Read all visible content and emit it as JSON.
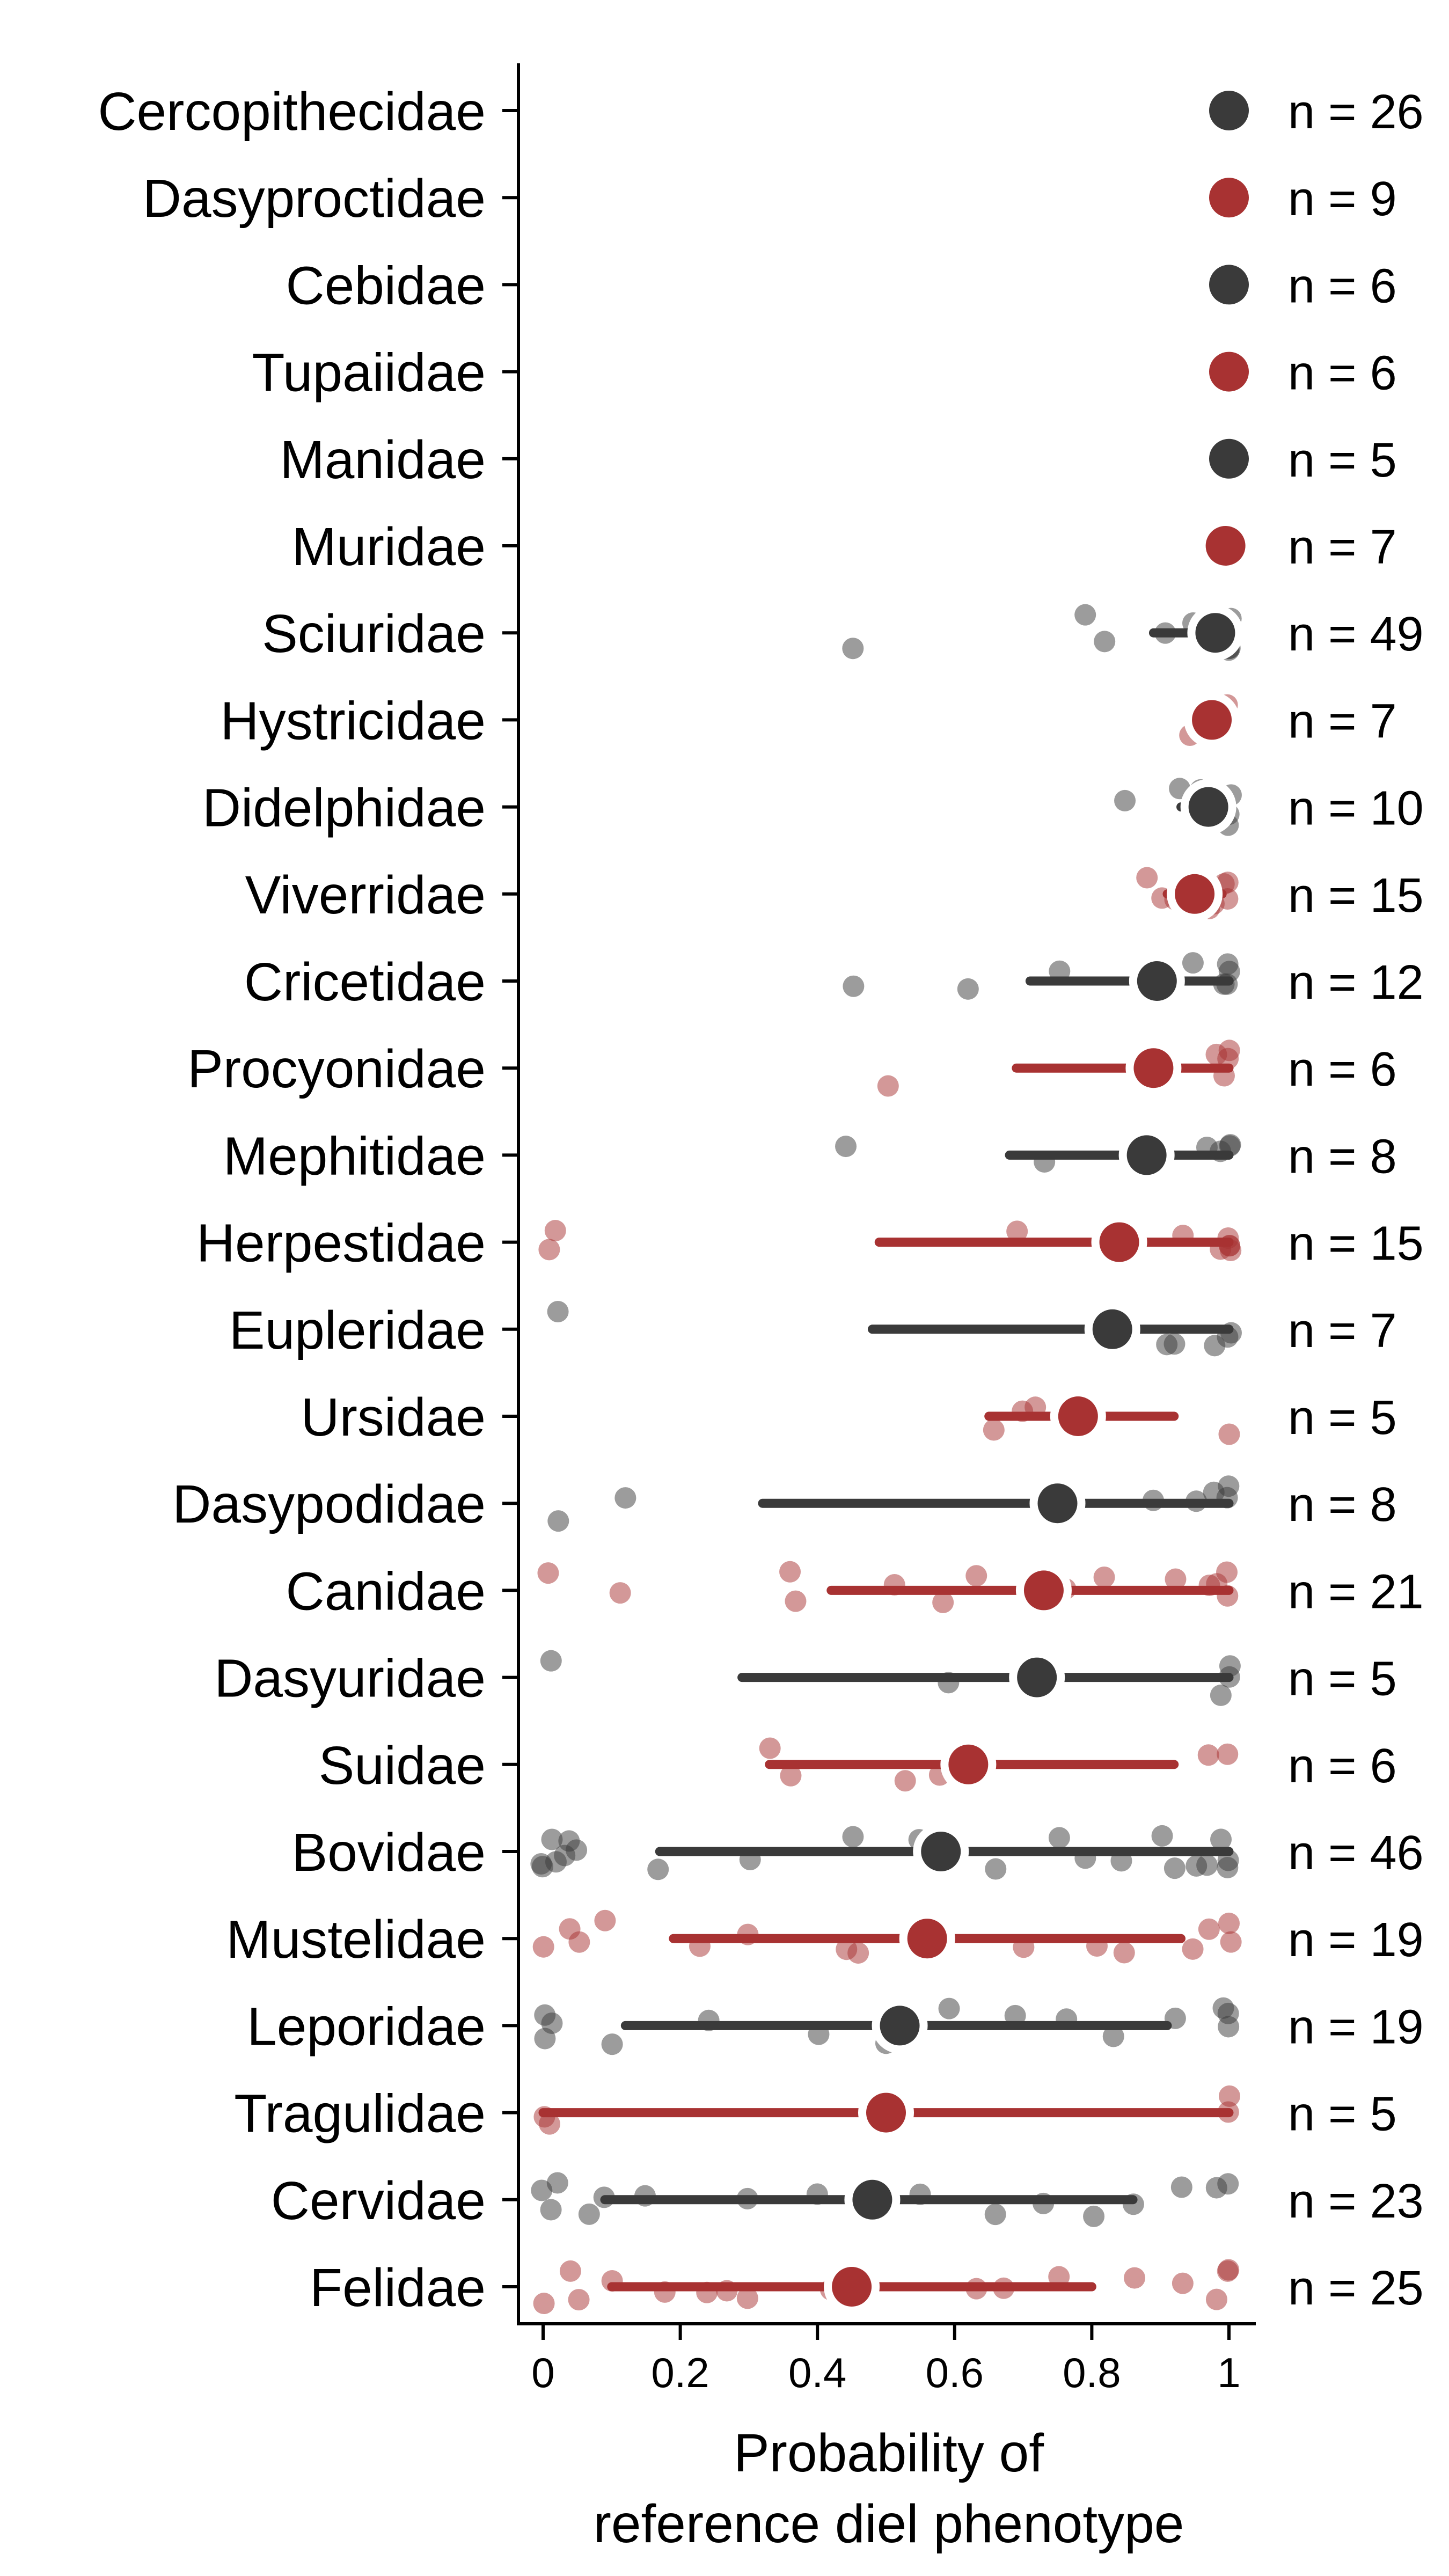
{
  "chart_data": {
    "type": "scatter",
    "xlabel": [
      "Probability of",
      "reference diel phenotype"
    ],
    "xlim": [
      -0.04,
      1.045
    ],
    "xticks": [
      {
        "value": 0,
        "label": "0"
      },
      {
        "value": 0.2,
        "label": "0.2"
      },
      {
        "value": 0.4,
        "label": "0.4"
      },
      {
        "value": 0.6,
        "label": "0.6"
      },
      {
        "value": 0.8,
        "label": "0.8"
      },
      {
        "value": 1,
        "label": "1"
      }
    ],
    "grid": false,
    "colors": {
      "dark": "#3a3a3a",
      "red": "#a83232"
    },
    "families": [
      {
        "name": "Cercopithecidae",
        "n_label": "n = 26",
        "color": "dark",
        "mean": 1.0,
        "lo": null,
        "hi": null,
        "points": [
          1.0,
          1.0,
          1.0,
          1.0,
          1.0,
          1.0,
          0.99,
          1.0,
          1.0,
          1.0
        ]
      },
      {
        "name": "Dasyproctidae",
        "n_label": "n = 9",
        "color": "red",
        "mean": 1.0,
        "lo": null,
        "hi": null,
        "points": [
          1.0,
          1.0,
          1.0,
          0.99,
          1.0,
          1.0
        ]
      },
      {
        "name": "Cebidae",
        "n_label": "n = 6",
        "color": "dark",
        "mean": 1.0,
        "lo": null,
        "hi": null,
        "points": [
          1.0,
          1.0,
          1.0,
          1.0
        ]
      },
      {
        "name": "Tupaiidae",
        "n_label": "n = 6",
        "color": "red",
        "mean": 1.0,
        "lo": null,
        "hi": null,
        "points": [
          1.0,
          1.0,
          0.99,
          1.0
        ]
      },
      {
        "name": "Manidae",
        "n_label": "n = 5",
        "color": "dark",
        "mean": 1.0,
        "lo": null,
        "hi": null,
        "points": [
          1.0,
          1.0,
          1.0,
          1.0
        ]
      },
      {
        "name": "Muridae",
        "n_label": "n = 7",
        "color": "red",
        "mean": 0.995,
        "lo": null,
        "hi": null,
        "points": [
          1.0,
          1.0,
          0.99,
          1.0,
          1.0,
          1.0
        ]
      },
      {
        "name": "Sciuridae",
        "n_label": "n = 49",
        "color": "dark",
        "mean": 0.98,
        "lo": 0.89,
        "hi": 1.0,
        "points": [
          0.45,
          0.79,
          0.82,
          0.91,
          0.95,
          0.97,
          0.99,
          1.0,
          1.0,
          1.0,
          1.0,
          0.98,
          0.99,
          1.0
        ]
      },
      {
        "name": "Hystricidae",
        "n_label": "n = 7",
        "color": "red",
        "mean": 0.975,
        "lo": null,
        "hi": null,
        "points": [
          0.94,
          0.96,
          0.99,
          1.0,
          1.0,
          0.98
        ]
      },
      {
        "name": "Didelphidae",
        "n_label": "n = 10",
        "color": "dark",
        "mean": 0.97,
        "lo": 0.93,
        "hi": 1.0,
        "points": [
          0.85,
          0.93,
          0.96,
          0.99,
          1.0,
          1.0,
          1.0,
          0.98
        ]
      },
      {
        "name": "Viverridae",
        "n_label": "n = 15",
        "color": "red",
        "mean": 0.95,
        "lo": 0.91,
        "hi": 0.99,
        "points": [
          0.88,
          0.9,
          0.92,
          0.96,
          0.98,
          0.99,
          1.0,
          1.0,
          0.97
        ]
      },
      {
        "name": "Cricetidae",
        "n_label": "n = 12",
        "color": "dark",
        "mean": 0.895,
        "lo": 0.71,
        "hi": 1.0,
        "points": [
          0.45,
          0.62,
          0.75,
          0.95,
          0.99,
          1.0,
          1.0,
          1.0
        ]
      },
      {
        "name": "Procyonidae",
        "n_label": "n = 6",
        "color": "red",
        "mean": 0.89,
        "lo": 0.69,
        "hi": 1.0,
        "points": [
          0.5,
          0.98,
          1.0,
          1.0,
          0.99
        ]
      },
      {
        "name": "Mephitidae",
        "n_label": "n = 8",
        "color": "dark",
        "mean": 0.88,
        "lo": 0.68,
        "hi": 1.0,
        "points": [
          0.44,
          0.73,
          0.97,
          1.0,
          1.0,
          0.99
        ]
      },
      {
        "name": "Herpestidae",
        "n_label": "n = 15",
        "color": "red",
        "mean": 0.84,
        "lo": 0.49,
        "hi": 1.0,
        "points": [
          0.01,
          0.02,
          0.69,
          0.93,
          1.0,
          1.0,
          1.0,
          1.0,
          0.99
        ]
      },
      {
        "name": "Eupleridae",
        "n_label": "n = 7",
        "color": "dark",
        "mean": 0.83,
        "lo": 0.48,
        "hi": 1.0,
        "points": [
          0.02,
          0.91,
          0.92,
          0.98,
          1.0,
          1.0
        ]
      },
      {
        "name": "Ursidae",
        "n_label": "n = 5",
        "color": "red",
        "mean": 0.78,
        "lo": 0.65,
        "hi": 0.92,
        "points": [
          0.66,
          0.7,
          0.72,
          1.0
        ]
      },
      {
        "name": "Dasypodidae",
        "n_label": "n = 8",
        "color": "dark",
        "mean": 0.75,
        "lo": 0.32,
        "hi": 1.0,
        "points": [
          0.02,
          0.12,
          0.89,
          0.95,
          0.98,
          1.0,
          1.0
        ]
      },
      {
        "name": "Canidae",
        "n_label": "n = 21",
        "color": "red",
        "mean": 0.73,
        "lo": 0.42,
        "hi": 1.0,
        "points": [
          0.01,
          0.11,
          0.36,
          0.37,
          0.51,
          0.58,
          0.63,
          0.72,
          0.76,
          0.82,
          0.92,
          0.97,
          1.0,
          1.0,
          0.98
        ]
      },
      {
        "name": "Dasyuridae",
        "n_label": "n = 5",
        "color": "dark",
        "mean": 0.72,
        "lo": 0.29,
        "hi": 1.0,
        "points": [
          0.01,
          0.59,
          1.0,
          1.0,
          0.99
        ]
      },
      {
        "name": "Suidae",
        "n_label": "n = 6",
        "color": "red",
        "mean": 0.62,
        "lo": 0.33,
        "hi": 0.92,
        "points": [
          0.33,
          0.36,
          0.53,
          0.58,
          0.97,
          1.0
        ]
      },
      {
        "name": "Bovidae",
        "n_label": "n = 46",
        "color": "dark",
        "mean": 0.58,
        "lo": 0.17,
        "hi": 1.0,
        "points": [
          0.0,
          0.0,
          0.01,
          0.02,
          0.03,
          0.04,
          0.05,
          0.17,
          0.3,
          0.45,
          0.55,
          0.66,
          0.75,
          0.79,
          0.84,
          0.9,
          0.92,
          0.95,
          0.97,
          0.99,
          1.0,
          1.0
        ]
      },
      {
        "name": "Mustelidae",
        "n_label": "n = 19",
        "color": "red",
        "mean": 0.56,
        "lo": 0.19,
        "hi": 0.93,
        "points": [
          0.0,
          0.04,
          0.05,
          0.09,
          0.23,
          0.3,
          0.44,
          0.46,
          0.7,
          0.81,
          0.85,
          0.95,
          0.97,
          1.0,
          1.0
        ]
      },
      {
        "name": "Leporidae",
        "n_label": "n = 19",
        "color": "dark",
        "mean": 0.52,
        "lo": 0.12,
        "hi": 0.91,
        "points": [
          0.0,
          0.0,
          0.01,
          0.1,
          0.24,
          0.4,
          0.5,
          0.59,
          0.69,
          0.76,
          0.83,
          0.92,
          1.0,
          1.0,
          0.99
        ]
      },
      {
        "name": "Tragulidae",
        "n_label": "n = 5",
        "color": "red",
        "mean": 0.5,
        "lo": 0.0,
        "hi": 1.0,
        "points": [
          0.0,
          0.01,
          0.5,
          1.0,
          1.0
        ]
      },
      {
        "name": "Cervidae",
        "n_label": "n = 23",
        "color": "dark",
        "mean": 0.48,
        "lo": 0.09,
        "hi": 0.86,
        "points": [
          0.0,
          0.01,
          0.02,
          0.07,
          0.09,
          0.15,
          0.3,
          0.4,
          0.55,
          0.66,
          0.73,
          0.8,
          0.86,
          0.93,
          0.98,
          1.0
        ]
      },
      {
        "name": "Felidae",
        "n_label": "n = 25",
        "color": "red",
        "mean": 0.45,
        "lo": 0.1,
        "hi": 0.8,
        "points": [
          0.0,
          0.04,
          0.05,
          0.1,
          0.18,
          0.24,
          0.27,
          0.3,
          0.42,
          0.46,
          0.63,
          0.67,
          0.75,
          0.86,
          0.93,
          0.98,
          1.0,
          1.0
        ]
      }
    ]
  }
}
